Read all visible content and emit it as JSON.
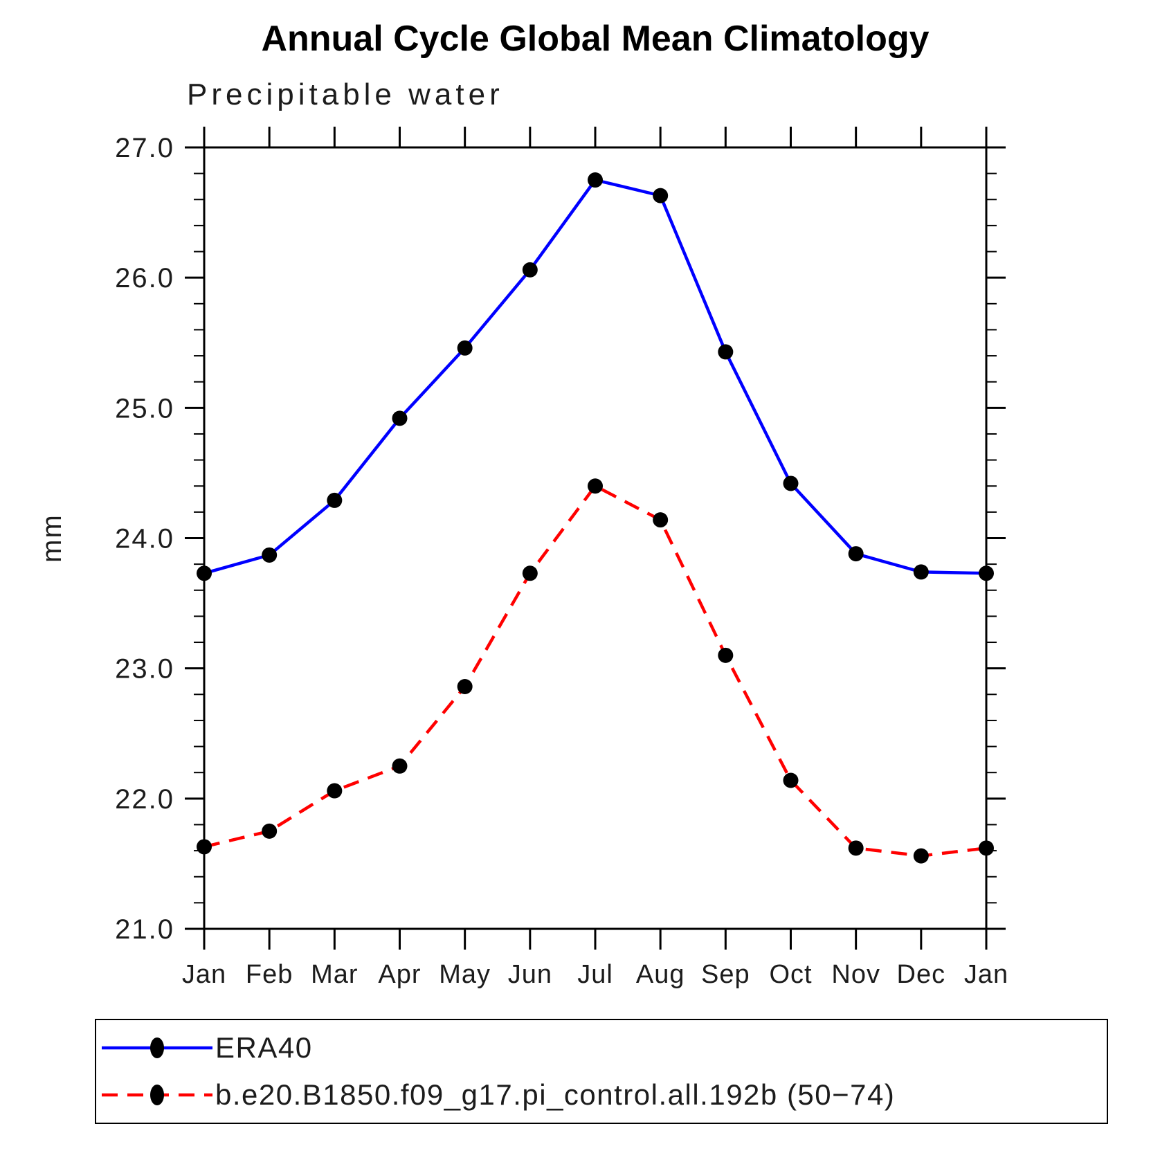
{
  "chart_data": {
    "type": "line",
    "title": "Annual Cycle Global Mean Climatology",
    "subtitle": "Precipitable water",
    "xlabel": "",
    "ylabel": "mm",
    "categories": [
      "Jan",
      "Feb",
      "Mar",
      "Apr",
      "May",
      "Jun",
      "Jul",
      "Aug",
      "Sep",
      "Oct",
      "Nov",
      "Dec",
      "Jan"
    ],
    "ylim": [
      21.0,
      27.0
    ],
    "ytick_interval": 1.0,
    "ytick_minor_interval": 0.2,
    "ytick_labels": [
      "21.0",
      "22.0",
      "23.0",
      "24.0",
      "25.0",
      "26.0",
      "27.0"
    ],
    "grid": false,
    "legend_position": "bottom",
    "marker_color": "#000000",
    "series": [
      {
        "name": "ERA40",
        "color": "#0000ff",
        "line_style": "solid",
        "marker": "circle",
        "values": [
          23.73,
          23.87,
          24.29,
          24.92,
          25.46,
          26.06,
          26.75,
          26.63,
          25.43,
          24.42,
          23.88,
          23.74,
          23.73
        ]
      },
      {
        "name": "b.e20.B1850.f09_g17.pi_control.all.192b (50−74)",
        "color": "#ff0000",
        "line_style": "dashed",
        "marker": "circle",
        "values": [
          21.63,
          21.75,
          22.06,
          22.25,
          22.86,
          23.73,
          24.4,
          24.14,
          23.1,
          22.14,
          21.62,
          21.56,
          21.62
        ]
      }
    ]
  }
}
